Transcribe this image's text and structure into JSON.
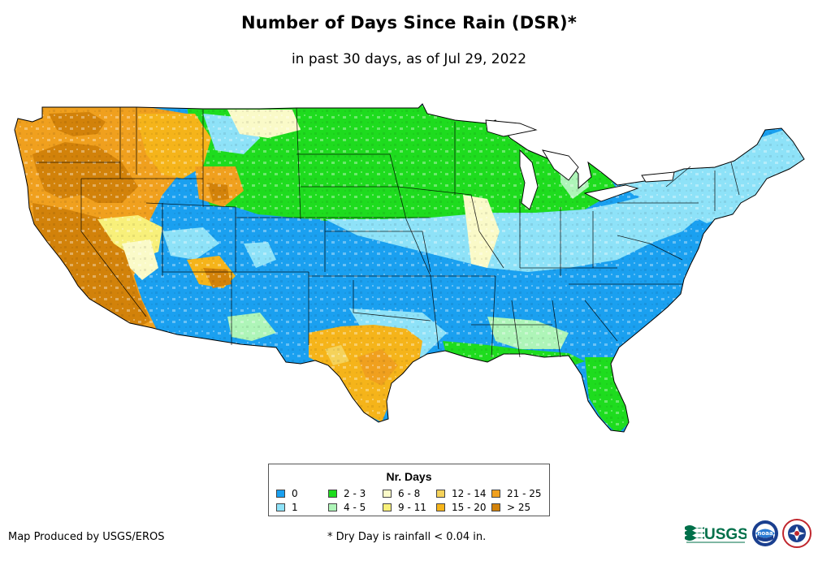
{
  "header": {
    "title": "Number of Days Since Rain (DSR)*",
    "subtitle": "in past 30 days, as of Jul 29, 2022"
  },
  "legend": {
    "title": "Nr. Days",
    "items": [
      {
        "label": "0",
        "color": "#1aa0f0"
      },
      {
        "label": "1",
        "color": "#8ee2f8"
      },
      {
        "label": "2 - 3",
        "color": "#1edc1e"
      },
      {
        "label": "4 - 5",
        "color": "#aef5b8"
      },
      {
        "label": "6 - 8",
        "color": "#fafac8"
      },
      {
        "label": "9 - 11",
        "color": "#f8f07a"
      },
      {
        "label": "12 - 14",
        "color": "#f5d25a"
      },
      {
        "label": "15 - 20",
        "color": "#f5b41a"
      },
      {
        "label": "21 - 25",
        "color": "#f0a01e"
      },
      {
        "label": "> 25",
        "color": "#d2820a"
      }
    ]
  },
  "footer": {
    "credit": "Map Produced by USGS/EROS",
    "footnote": "* Dry Day is rainfall < 0.04 in."
  },
  "logos": [
    {
      "name": "usgs-logo",
      "text": "USGS"
    },
    {
      "name": "noaa-logo",
      "text": "noaa"
    },
    {
      "name": "nws-logo",
      "icon": "nws-emblem"
    }
  ]
}
